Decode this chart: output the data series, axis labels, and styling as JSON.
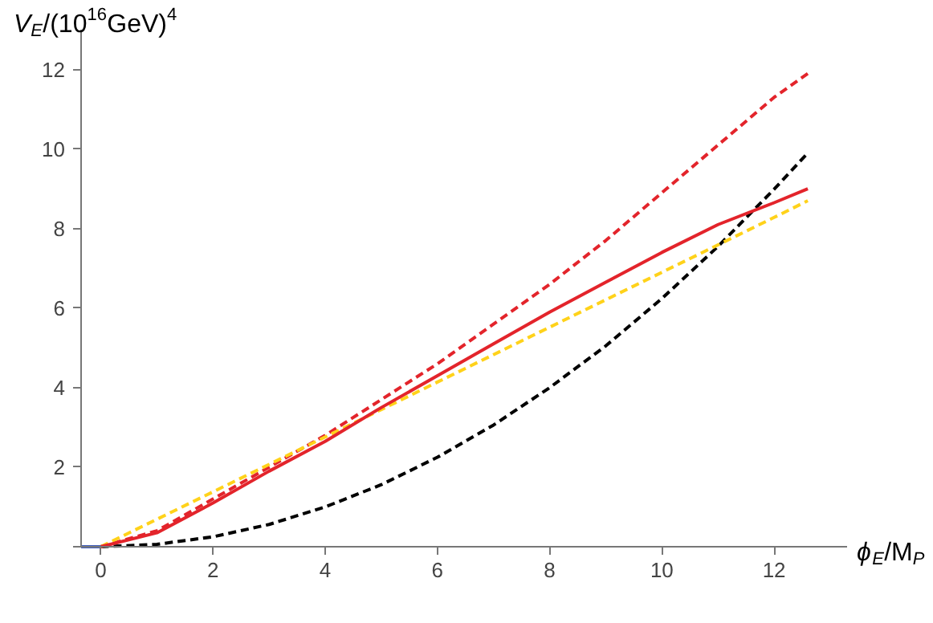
{
  "chart_data": {
    "type": "line",
    "xlabel": "ϕ$_{E}$/M$_{P}$",
    "ylabel": "V$_{E}$/(10$^{16}$GeV)$^{4}$",
    "xlim": [
      -0.35,
      13.3
    ],
    "ylim": [
      0,
      13
    ],
    "xticks": [
      0,
      2,
      4,
      6,
      8,
      10,
      12
    ],
    "yticks": [
      {
        "value": 0,
        "label": null
      },
      2,
      4,
      6,
      8,
      10,
      12
    ],
    "marker": "none",
    "x": [
      0,
      1,
      2,
      3,
      4,
      5,
      6,
      7,
      8,
      9,
      10,
      11,
      12,
      12.6
    ],
    "series": [
      {
        "color": "#e3242b",
        "line_style": "dashed",
        "values": [
          0,
          0.4,
          1.2,
          2.0,
          2.8,
          3.7,
          4.6,
          5.6,
          6.6,
          7.7,
          8.9,
          10.1,
          11.3,
          11.9
        ]
      },
      {
        "color": "#000000",
        "line_style": "dashed",
        "values": [
          0,
          0.06,
          0.25,
          0.56,
          1.0,
          1.56,
          2.25,
          3.06,
          4.0,
          5.05,
          6.24,
          7.55,
          8.99,
          9.9
        ]
      },
      {
        "color": "#ffd21a",
        "line_style": "dashed",
        "values": [
          0,
          0.69,
          1.38,
          2.07,
          2.76,
          3.45,
          4.14,
          4.83,
          5.52,
          6.21,
          6.9,
          7.59,
          8.28,
          8.7
        ]
      },
      {
        "color": "#e3242b",
        "line_style": "solid",
        "values": [
          0,
          0.35,
          1.1,
          1.9,
          2.65,
          3.5,
          4.3,
          5.1,
          5.9,
          6.65,
          7.4,
          8.1,
          8.65,
          9.0
        ]
      },
      {
        "color": "#3f5fbf",
        "line_style": "solid",
        "x": [
          -0.35,
          0
        ],
        "values": [
          0,
          0
        ]
      }
    ]
  }
}
